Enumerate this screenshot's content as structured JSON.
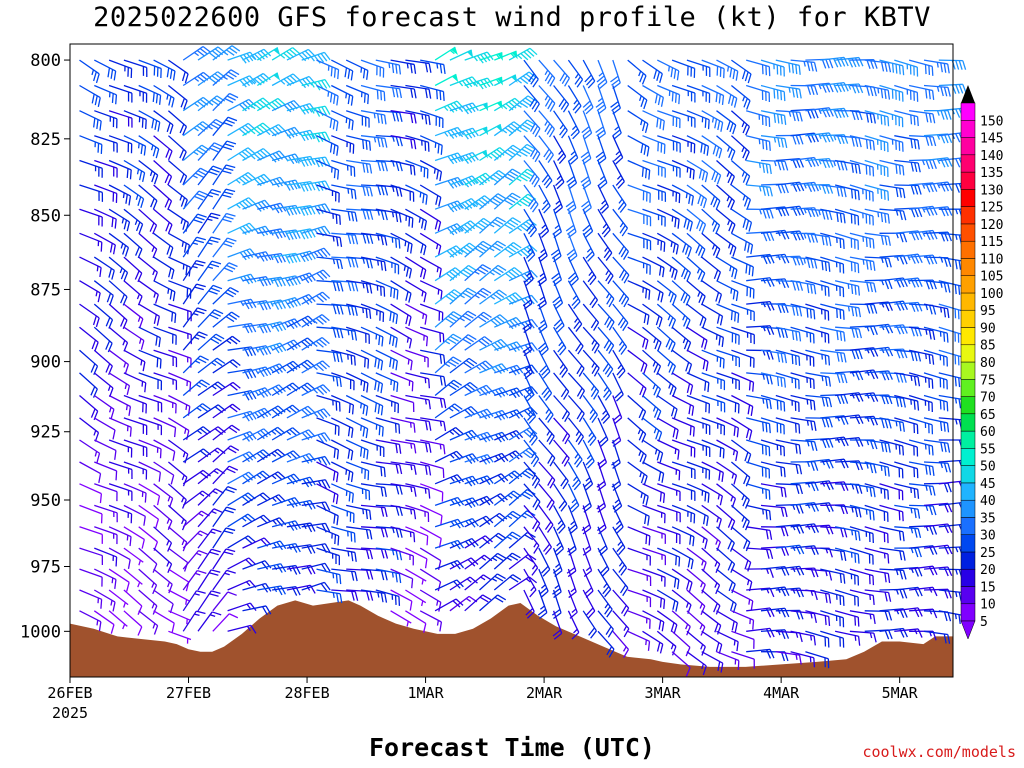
{
  "title": "2025022600 GFS forecast wind profile (kt) for KBTV",
  "xlabel": "Forecast Time (UTC)",
  "credit": "coolwx.com/models",
  "chart_data": {
    "type": "wind-barb-time-height",
    "title": "2025022600 GFS forecast wind profile (kt) for KBTV",
    "xlabel": "Forecast Time (UTC)",
    "ylabel": "",
    "units": "kt",
    "x_ticks": [
      {
        "label": "26FEB",
        "sublabel": "2025",
        "day": 0
      },
      {
        "label": "27FEB",
        "day": 1
      },
      {
        "label": "28FEB",
        "day": 2
      },
      {
        "label": "1MAR",
        "day": 3
      },
      {
        "label": "2MAR",
        "day": 4
      },
      {
        "label": "3MAR",
        "day": 5
      },
      {
        "label": "4MAR",
        "day": 6
      },
      {
        "label": "5MAR",
        "day": 7
      }
    ],
    "xlim_days": [
      0,
      7.45
    ],
    "y_ticks": [
      800,
      825,
      850,
      875,
      900,
      925,
      950,
      975,
      1000
    ],
    "ylim_hpa": [
      1018,
      795
    ],
    "pressure_levels": [
      800,
      825,
      850,
      875,
      900,
      925,
      950,
      975,
      1000
    ],
    "colorbar": {
      "labels": [
        5,
        10,
        15,
        20,
        25,
        30,
        35,
        40,
        45,
        50,
        55,
        60,
        65,
        70,
        75,
        80,
        85,
        90,
        95,
        100,
        105,
        110,
        115,
        120,
        125,
        130,
        135,
        140,
        145,
        150
      ],
      "colors": [
        "#8000ff",
        "#5800f0",
        "#2800e6",
        "#0020e0",
        "#0048f0",
        "#1a70ff",
        "#1e94ff",
        "#20b4ff",
        "#10d8e6",
        "#00f0d0",
        "#00f0a0",
        "#00e050",
        "#20e020",
        "#60f020",
        "#a8f820",
        "#e8f810",
        "#ffe800",
        "#ffd000",
        "#ffb800",
        "#ffa000",
        "#ff8800",
        "#ff7000",
        "#ff5000",
        "#ff3000",
        "#ff0000",
        "#ff0040",
        "#ff0070",
        "#ff00a0",
        "#ff00d0",
        "#ff00ff"
      ]
    },
    "surface_pressure_hpa": [
      [
        0.0,
        997
      ],
      [
        0.2,
        999
      ],
      [
        0.4,
        1002
      ],
      [
        0.6,
        1003
      ],
      [
        0.8,
        1004
      ],
      [
        0.9,
        1005
      ],
      [
        1.0,
        1007
      ],
      [
        1.1,
        1008
      ],
      [
        1.2,
        1008
      ],
      [
        1.3,
        1006
      ],
      [
        1.45,
        1001
      ],
      [
        1.6,
        995
      ],
      [
        1.75,
        990
      ],
      [
        1.9,
        988
      ],
      [
        2.05,
        990
      ],
      [
        2.2,
        989
      ],
      [
        2.35,
        988
      ],
      [
        2.45,
        990
      ],
      [
        2.6,
        994
      ],
      [
        2.75,
        997
      ],
      [
        2.9,
        999
      ],
      [
        3.1,
        1001
      ],
      [
        3.25,
        1001
      ],
      [
        3.4,
        999
      ],
      [
        3.55,
        995
      ],
      [
        3.7,
        990
      ],
      [
        3.8,
        989
      ],
      [
        3.95,
        994
      ],
      [
        4.1,
        998
      ],
      [
        4.3,
        1002
      ],
      [
        4.5,
        1006
      ],
      [
        4.7,
        1010
      ],
      [
        4.9,
        1011
      ],
      [
        5.0,
        1012
      ],
      [
        5.15,
        1013
      ],
      [
        5.4,
        1014
      ],
      [
        5.7,
        1014
      ],
      [
        6.0,
        1013
      ],
      [
        6.3,
        1012
      ],
      [
        6.55,
        1011
      ],
      [
        6.7,
        1008
      ],
      [
        6.85,
        1004
      ],
      [
        7.0,
        1004
      ],
      [
        7.2,
        1005
      ],
      [
        7.3,
        1002
      ],
      [
        7.45,
        1002
      ]
    ],
    "wind_regimes": [
      {
        "from_day": 0.0,
        "to_day": 0.95,
        "direction_deg": 300,
        "speed_kt": [
          25,
          8
        ]
      },
      {
        "from_day": 0.95,
        "to_day": 1.3,
        "direction_deg": 225,
        "speed_kt": [
          35,
          12
        ]
      },
      {
        "from_day": 1.3,
        "to_day": 2.0,
        "direction_deg": 250,
        "speed_kt": [
          45,
          18
        ]
      },
      {
        "from_day": 2.0,
        "to_day": 2.6,
        "direction_deg": 285,
        "speed_kt": [
          30,
          20
        ]
      },
      {
        "from_day": 2.6,
        "to_day": 3.05,
        "direction_deg": 290,
        "speed_kt": [
          25,
          8
        ]
      },
      {
        "from_day": 3.05,
        "to_day": 3.8,
        "direction_deg": 240,
        "speed_kt": [
          50,
          15
        ]
      },
      {
        "from_day": 3.8,
        "to_day": 4.6,
        "direction_deg": 330,
        "speed_kt": [
          30,
          18
        ]
      },
      {
        "from_day": 4.6,
        "to_day": 5.7,
        "direction_deg": 300,
        "speed_kt": [
          30,
          15
        ]
      },
      {
        "from_day": 5.7,
        "to_day": 7.45,
        "direction_deg": 275,
        "speed_kt": [
          35,
          18
        ]
      }
    ]
  }
}
